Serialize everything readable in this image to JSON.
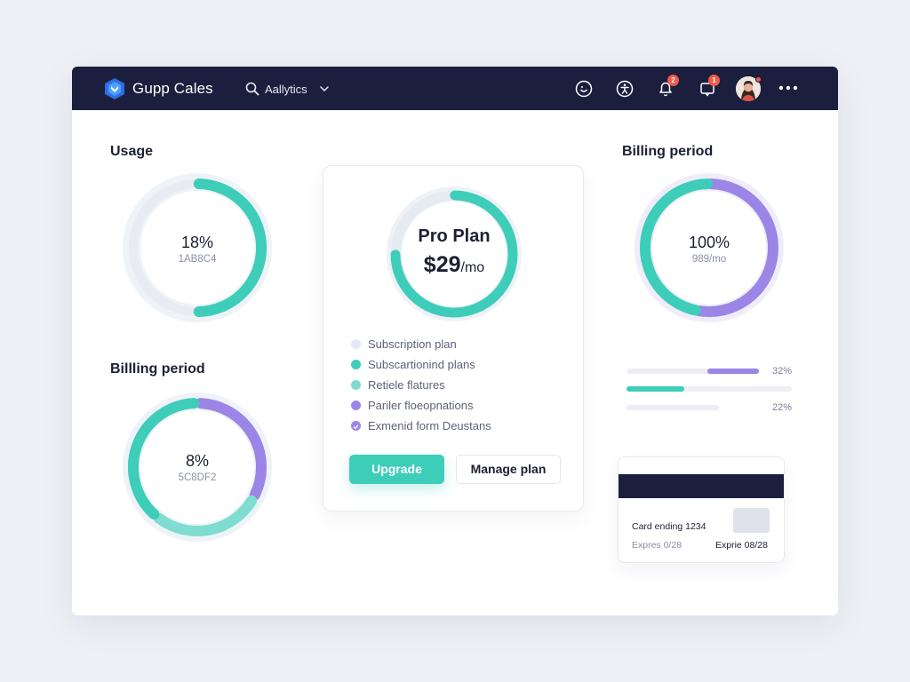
{
  "header": {
    "brand": "Gupp Cales",
    "search_label": "Aallytics",
    "notification_count": "2",
    "messages_count": "1",
    "icons": [
      "support-icon",
      "accessibility-icon",
      "bell-icon",
      "chat-icon",
      "avatar",
      "more-icon"
    ]
  },
  "usage": {
    "title": "Usage",
    "value": "18%",
    "sub": "1AB8C4",
    "segments": [
      {
        "color": "#3ecdb9",
        "fraction": 0.5
      }
    ]
  },
  "billing_left": {
    "title": "Billling period",
    "value": "8%",
    "sub": "5C8DF2",
    "segments": [
      {
        "color": "#9b85e6",
        "fraction": 0.33
      },
      {
        "color": "#7fdcd0",
        "fraction": 0.28
      },
      {
        "color": "#3ecdb9",
        "fraction": 0.39
      }
    ]
  },
  "plan": {
    "name": "Pro Plan",
    "price": "$29",
    "period": "/mo",
    "ring_fraction": 0.75,
    "features": [
      {
        "label": "Subscription plan",
        "color": "#e6e9f2"
      },
      {
        "label": "Subscartionind plans",
        "color": "#3ecdb9"
      },
      {
        "label": "Retiele flatures",
        "color": "#7fdcd0"
      },
      {
        "label": "Pariler floeopnations",
        "color": "#9b85e6"
      },
      {
        "label": "Exmenid form Deustans",
        "color": "#9b85e6"
      }
    ],
    "upgrade_label": "Upgrade",
    "manage_label": "Manage plan"
  },
  "billing_right": {
    "title": "Billing period",
    "value": "100%",
    "sub": "989/mo",
    "segments": [
      {
        "color": "#9b85e6",
        "fraction": 0.53
      },
      {
        "color": "#3ecdb9",
        "fraction": 0.47
      }
    ]
  },
  "bars": [
    {
      "label": "32%",
      "fill_color": "#9b85e6",
      "start": 0.49,
      "end": 0.8
    },
    {
      "label": "",
      "fill_color": "#3ecdb9",
      "start": 0.0,
      "end": 0.35
    },
    {
      "label": "22%",
      "fill_color": "#eceef4",
      "start": 0.0,
      "end": 0.56
    }
  ],
  "card": {
    "line1": "Card ending 1234",
    "exp_left": "Expres 0/28",
    "exp_right": "Exprie 08/28"
  },
  "colors": {
    "accent_teal": "#3ecdb9",
    "accent_purple": "#9b85e6",
    "header_bg": "#1b1f3d"
  }
}
